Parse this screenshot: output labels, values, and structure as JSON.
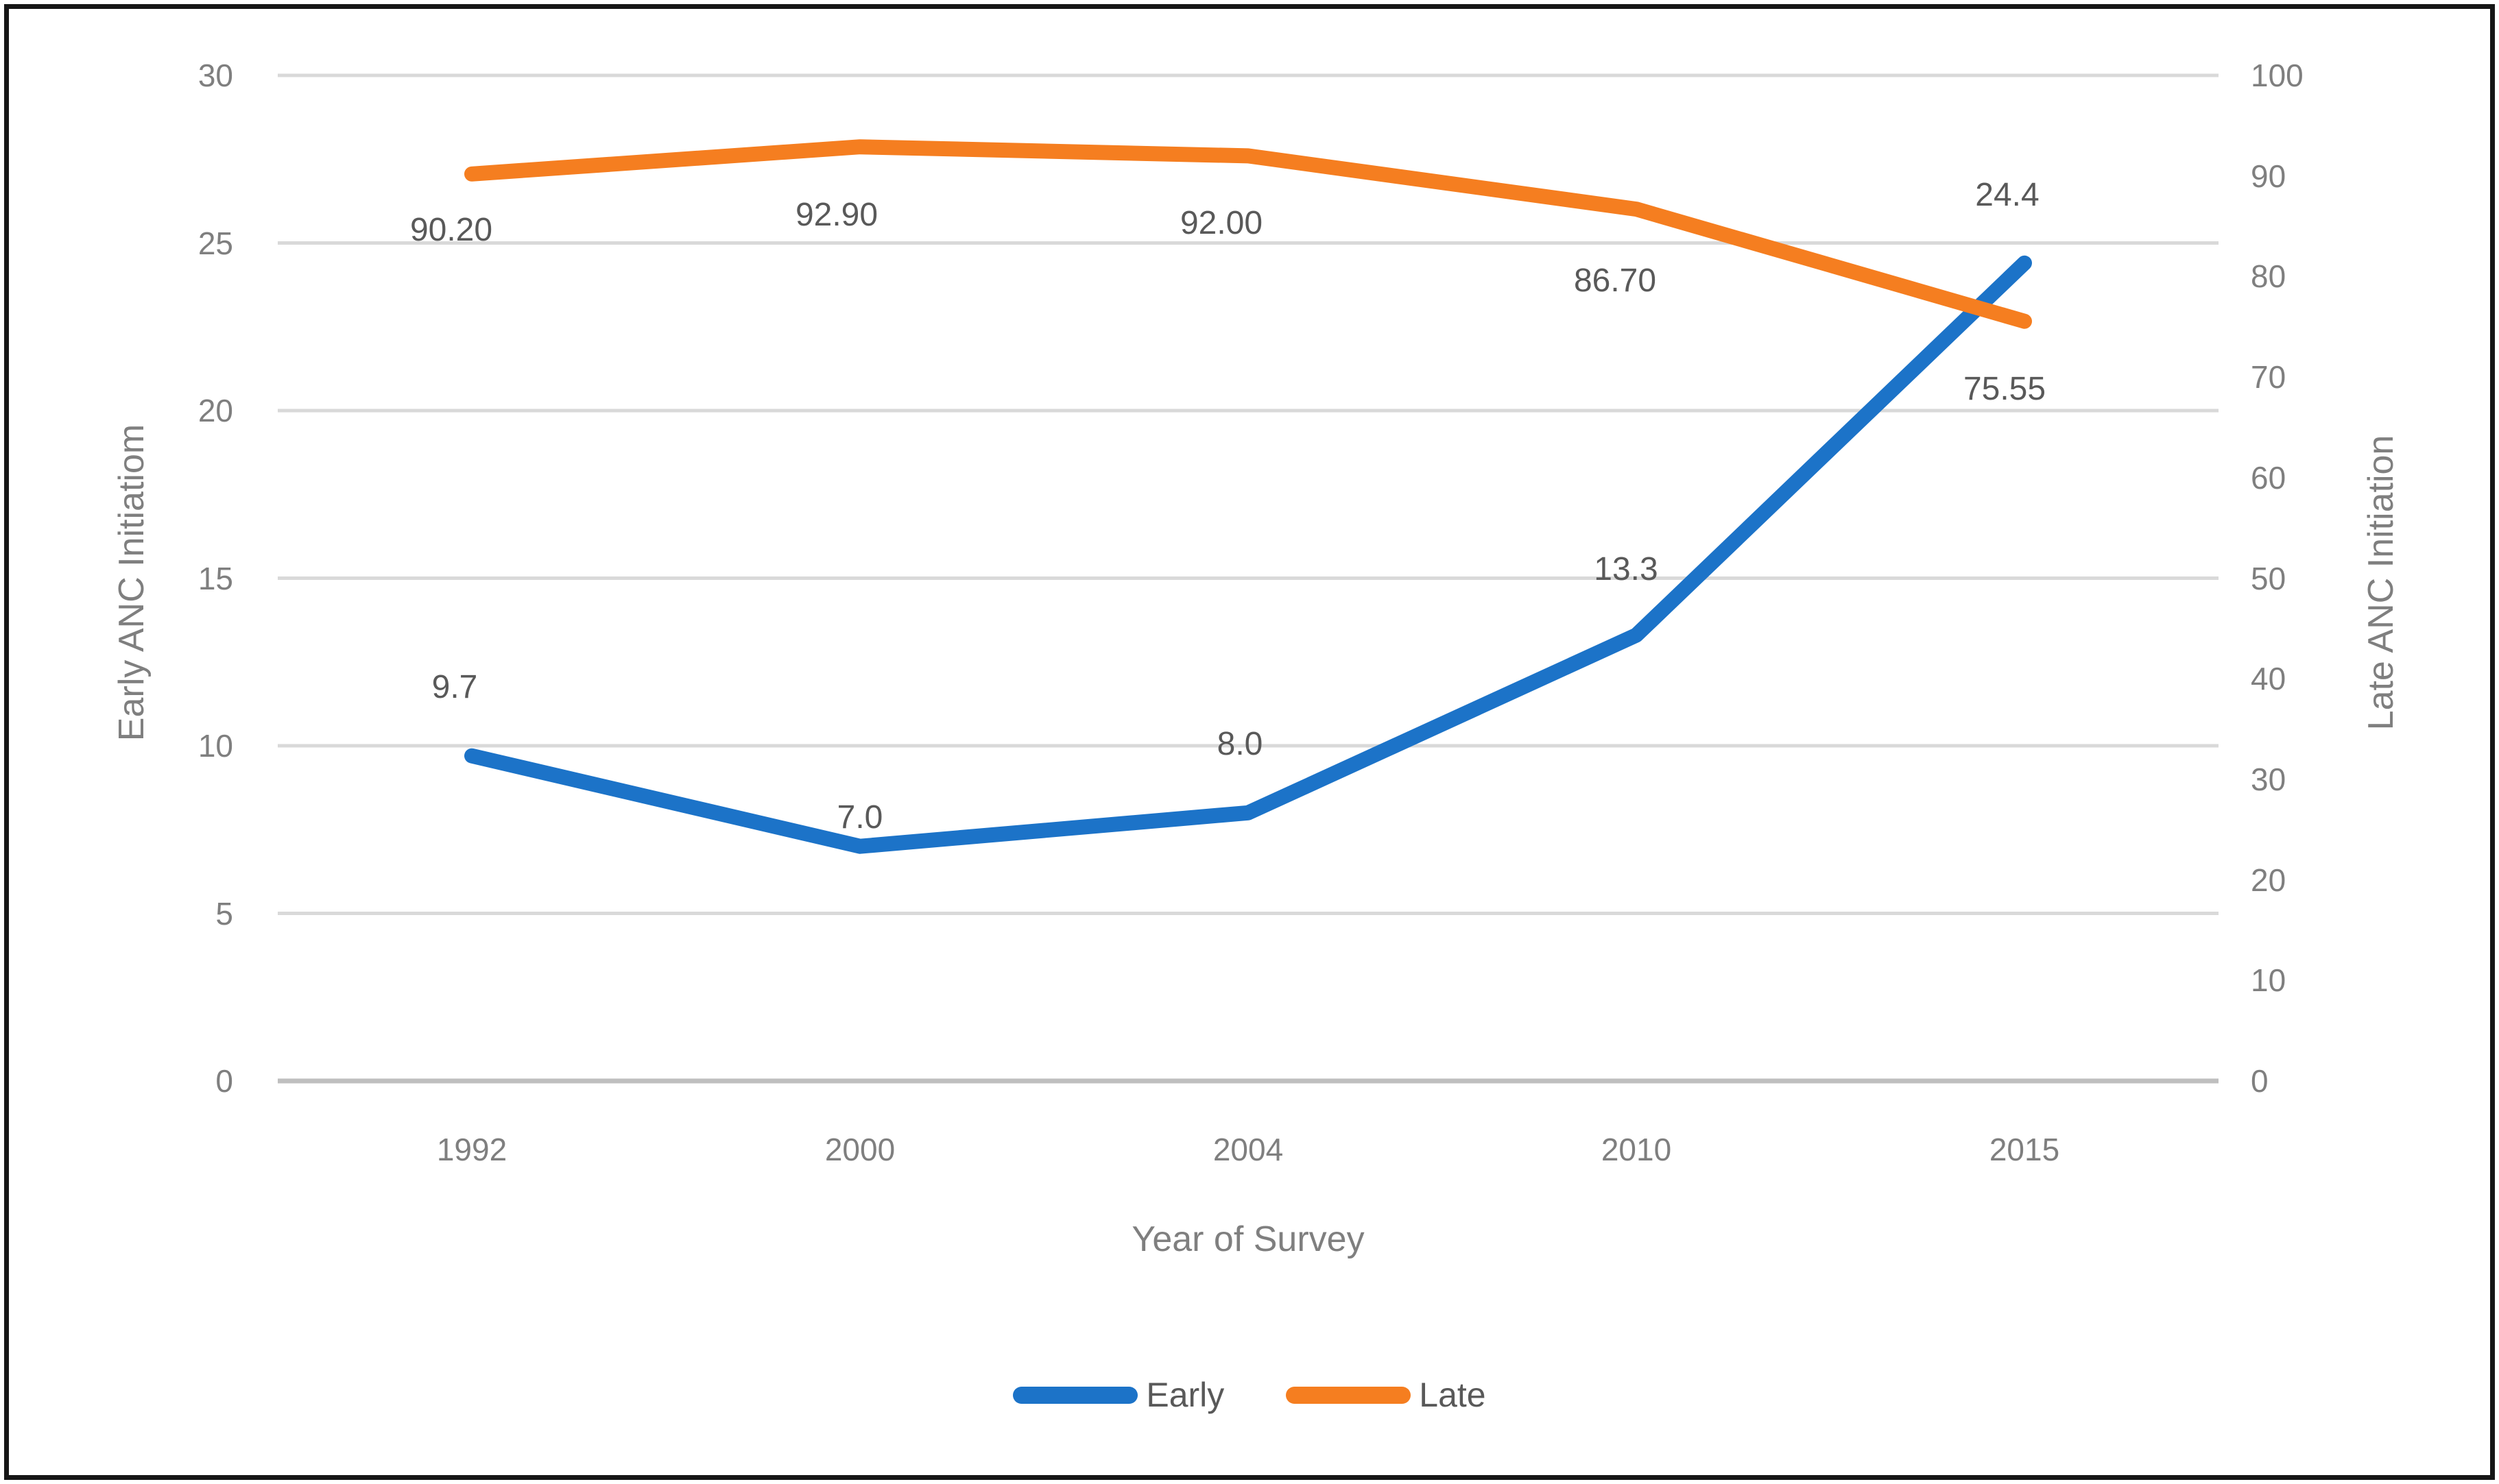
{
  "chart_data": {
    "type": "line",
    "categories": [
      "1992",
      "2000",
      "2004",
      "2010",
      "2015"
    ],
    "series": [
      {
        "name": "Early",
        "axis": "left",
        "color": "#1c73c8",
        "values": [
          9.7,
          7.0,
          8.0,
          13.3,
          24.4
        ],
        "point_labels": [
          "9.7",
          "7.0",
          "8.0",
          "13.3",
          "24.4"
        ],
        "label_side": "above"
      },
      {
        "name": "Late",
        "axis": "right",
        "color": "#f57e20",
        "values": [
          90.2,
          92.9,
          92.0,
          86.7,
          75.55
        ],
        "point_labels": [
          "90.20",
          "92.90",
          "92.00",
          "86.70",
          "75.55"
        ],
        "label_side": "below"
      }
    ],
    "xlabel": "Year of Survey",
    "left_axis": {
      "title": "Early ANC Initiatiom",
      "min": 0,
      "max": 30,
      "ticks": [
        "30",
        "25",
        "20",
        "15",
        "10",
        "5",
        "0"
      ]
    },
    "right_axis": {
      "title": "Late ANC Initiation",
      "min": 0,
      "max": 100,
      "ticks": [
        "100",
        "90",
        "80",
        "70",
        "60",
        "50",
        "40",
        "30",
        "20",
        "10",
        "0"
      ]
    },
    "legend": {
      "position": "bottom",
      "entries": [
        "Early",
        "Late"
      ]
    },
    "grid": "horizontal",
    "gridline_color": "#d9d9d9",
    "axis_line_color": "#bfbfbf",
    "frame_color": "#161616",
    "text_color": "#7f7f7f",
    "data_label_color": "#595959"
  }
}
